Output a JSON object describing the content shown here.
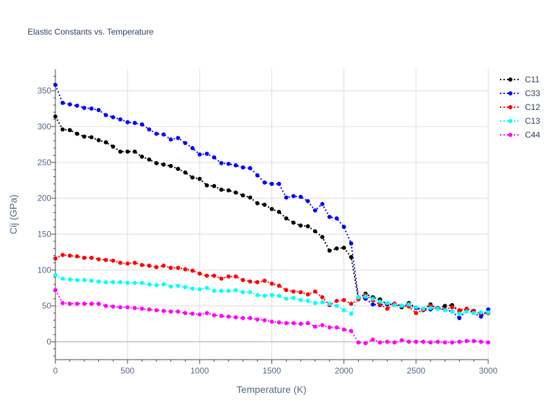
{
  "chart_data": {
    "type": "line",
    "title": "Elastic Constants vs. Temperature",
    "xlabel": "Temperature (K)",
    "ylabel": "Cij (GPa)",
    "xlim": [
      0,
      3000
    ],
    "ylim": [
      -25,
      380
    ],
    "x_ticks": [
      0,
      500,
      1000,
      1500,
      2000,
      2500,
      3000
    ],
    "y_ticks": [
      0,
      50,
      100,
      150,
      200,
      250,
      300,
      350
    ],
    "grid": true,
    "legend_position": "top-right",
    "line_style": "dotted with circle markers",
    "x": [
      0,
      50,
      100,
      150,
      200,
      250,
      300,
      350,
      400,
      450,
      500,
      550,
      600,
      650,
      700,
      750,
      800,
      850,
      900,
      950,
      1000,
      1050,
      1100,
      1150,
      1200,
      1250,
      1300,
      1350,
      1400,
      1450,
      1500,
      1550,
      1600,
      1650,
      1700,
      1750,
      1800,
      1850,
      1900,
      1950,
      2000,
      2050,
      2100,
      2150,
      2200,
      2250,
      2300,
      2350,
      2400,
      2450,
      2500,
      2550,
      2600,
      2650,
      2700,
      2750,
      2800,
      2850,
      2900,
      2950,
      3000
    ],
    "series": [
      {
        "name": "C11",
        "color": "#000000",
        "values": [
          314,
          296,
          295,
          290,
          286,
          285,
          281,
          278,
          272,
          265,
          265,
          265,
          258,
          254,
          249,
          247,
          245,
          241,
          236,
          229,
          227,
          218,
          217,
          212,
          211,
          208,
          204,
          201,
          193,
          191,
          185,
          181,
          172,
          166,
          162,
          161,
          154,
          146,
          127,
          130,
          131,
          118,
          60,
          67,
          62,
          59,
          52,
          52,
          48,
          54,
          47,
          45,
          52,
          46,
          50,
          51,
          43,
          45,
          43,
          39,
          40
        ]
      },
      {
        "name": "C33",
        "color": "#0000ff",
        "values": [
          358,
          333,
          331,
          329,
          326,
          325,
          323,
          316,
          313,
          310,
          306,
          305,
          303,
          296,
          290,
          289,
          282,
          284,
          277,
          270,
          261,
          262,
          257,
          249,
          248,
          246,
          243,
          242,
          232,
          222,
          220,
          220,
          201,
          203,
          202,
          196,
          183,
          192,
          174,
          172,
          160,
          137,
          62,
          60,
          52,
          51,
          53,
          53,
          50,
          51,
          47,
          44,
          45,
          47,
          45,
          42,
          33,
          44,
          40,
          35,
          45
        ]
      },
      {
        "name": "C12",
        "color": "#ff0000",
        "values": [
          116,
          121,
          120,
          119,
          117,
          117,
          115,
          114,
          113,
          110,
          109,
          110,
          107,
          106,
          104,
          106,
          103,
          103,
          101,
          99,
          95,
          92,
          92,
          88,
          91,
          91,
          86,
          84,
          83,
          85,
          81,
          78,
          72,
          70,
          69,
          66,
          70,
          62,
          51,
          57,
          58,
          53,
          59,
          65,
          58,
          52,
          46,
          53,
          50,
          49,
          40,
          44,
          50,
          46,
          45,
          48,
          44,
          46,
          42,
          40,
          40
        ]
      },
      {
        "name": "C13",
        "color": "#00ffff",
        "values": [
          93,
          88,
          87,
          86,
          86,
          85,
          84,
          83,
          83,
          83,
          82,
          82,
          82,
          80,
          79,
          80,
          77,
          78,
          76,
          74,
          73,
          75,
          71,
          71,
          71,
          72,
          69,
          69,
          65,
          64,
          65,
          64,
          60,
          61,
          58,
          57,
          54,
          55,
          53,
          50,
          44,
          39,
          62,
          63,
          60,
          56,
          54,
          51,
          50,
          52,
          48,
          46,
          47,
          46,
          44,
          42,
          39,
          42,
          40,
          41,
          41
        ]
      },
      {
        "name": "C44",
        "color": "#ff00ff",
        "values": [
          72,
          54,
          53,
          53,
          53,
          53,
          53,
          50,
          49,
          48,
          48,
          47,
          46,
          45,
          44,
          43,
          42,
          42,
          40,
          39,
          38,
          40,
          37,
          36,
          35,
          34,
          33,
          33,
          31,
          30,
          28,
          27,
          26,
          26,
          25,
          26,
          21,
          23,
          20,
          20,
          17,
          15,
          -1,
          -2,
          3,
          -1,
          0,
          -1,
          2,
          0,
          0,
          0,
          -1,
          0,
          -1,
          -1,
          0,
          1,
          1,
          0,
          -1
        ]
      }
    ]
  }
}
